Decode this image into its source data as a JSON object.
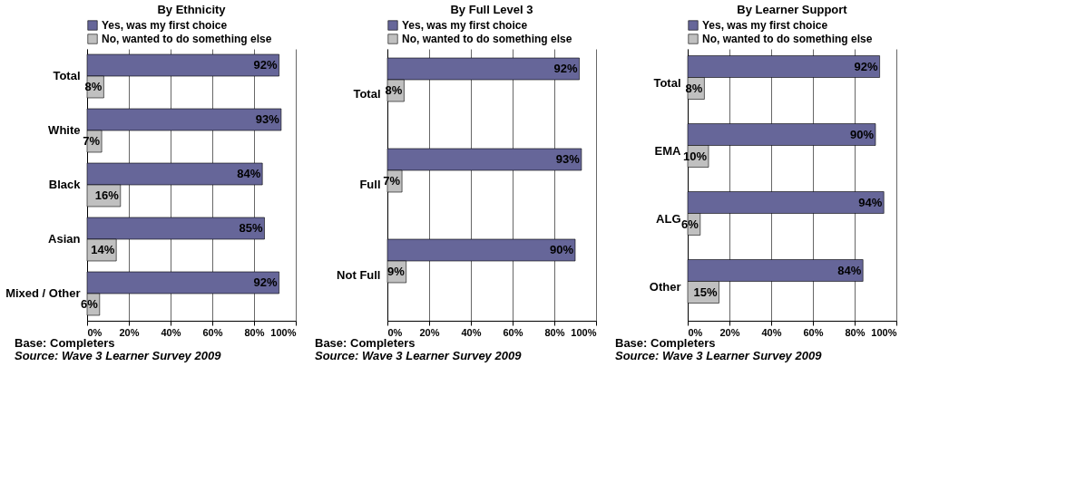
{
  "chart_data": [
    {
      "type": "bar",
      "orientation": "horizontal",
      "title": "By Ethnicity",
      "categories": [
        "Total",
        "White",
        "Black",
        "Asian",
        "Mixed / Other"
      ],
      "series": [
        {
          "name": "Yes, was my first choice",
          "color": "#666699",
          "values": [
            92,
            93,
            84,
            85,
            92
          ],
          "value_labels": [
            "92%",
            "93%",
            "84%",
            "85%",
            "92%"
          ]
        },
        {
          "name": "No, wanted to do something else",
          "color": "#c0c0c0",
          "values": [
            8,
            7,
            16,
            14,
            6
          ],
          "value_labels": [
            "8%",
            "7%",
            "16%",
            "14%",
            "6%"
          ]
        }
      ],
      "xlim": [
        0,
        100
      ],
      "xticks": [
        {
          "value": 0,
          "label": "0%"
        },
        {
          "value": 20,
          "label": "20%"
        },
        {
          "value": 40,
          "label": "40%"
        },
        {
          "value": 60,
          "label": "60%"
        },
        {
          "value": 80,
          "label": "80%"
        },
        {
          "value": 100,
          "label": "100%"
        }
      ],
      "grid": "x",
      "legend": "top",
      "annotations": [
        "Base: Completers",
        "Source: Wave 3 Learner Survey 2009"
      ]
    },
    {
      "type": "bar",
      "orientation": "horizontal",
      "title": "By Full Level 3",
      "categories": [
        "Total",
        "Full",
        "Not Full"
      ],
      "series": [
        {
          "name": "Yes, was my first choice",
          "color": "#666699",
          "values": [
            92,
            93,
            90
          ],
          "value_labels": [
            "92%",
            "93%",
            "90%"
          ]
        },
        {
          "name": "No, wanted to do something else",
          "color": "#c0c0c0",
          "values": [
            8,
            7,
            9
          ],
          "value_labels": [
            "8%",
            "7%",
            "9%"
          ]
        }
      ],
      "xlim": [
        0,
        100
      ],
      "xticks": [
        {
          "value": 0,
          "label": "0%"
        },
        {
          "value": 20,
          "label": "20%"
        },
        {
          "value": 40,
          "label": "40%"
        },
        {
          "value": 60,
          "label": "60%"
        },
        {
          "value": 80,
          "label": "80%"
        },
        {
          "value": 100,
          "label": "100%"
        }
      ],
      "grid": "x",
      "legend": "top",
      "annotations": [
        "Base: Completers",
        "Source: Wave 3 Learner Survey 2009"
      ]
    },
    {
      "type": "bar",
      "orientation": "horizontal",
      "title": "By Learner Support",
      "categories": [
        "Total",
        "EMA",
        "ALG",
        "Other"
      ],
      "series": [
        {
          "name": "Yes, was my first choice",
          "color": "#666699",
          "values": [
            92,
            90,
            94,
            84
          ],
          "value_labels": [
            "92%",
            "90%",
            "94%",
            "84%"
          ]
        },
        {
          "name": "No, wanted to do something else",
          "color": "#c0c0c0",
          "values": [
            8,
            10,
            6,
            15
          ],
          "value_labels": [
            "8%",
            "10%",
            "6%",
            "15%"
          ]
        }
      ],
      "xlim": [
        0,
        100
      ],
      "xticks": [
        {
          "value": 0,
          "label": "0%"
        },
        {
          "value": 20,
          "label": "20%"
        },
        {
          "value": 40,
          "label": "40%"
        },
        {
          "value": 60,
          "label": "60%"
        },
        {
          "value": 80,
          "label": "80%"
        },
        {
          "value": 100,
          "label": "100%"
        }
      ],
      "grid": "x",
      "legend": "top",
      "annotations": [
        "Base: Completers",
        "Source: Wave 3 Learner Survey 2009"
      ]
    }
  ]
}
